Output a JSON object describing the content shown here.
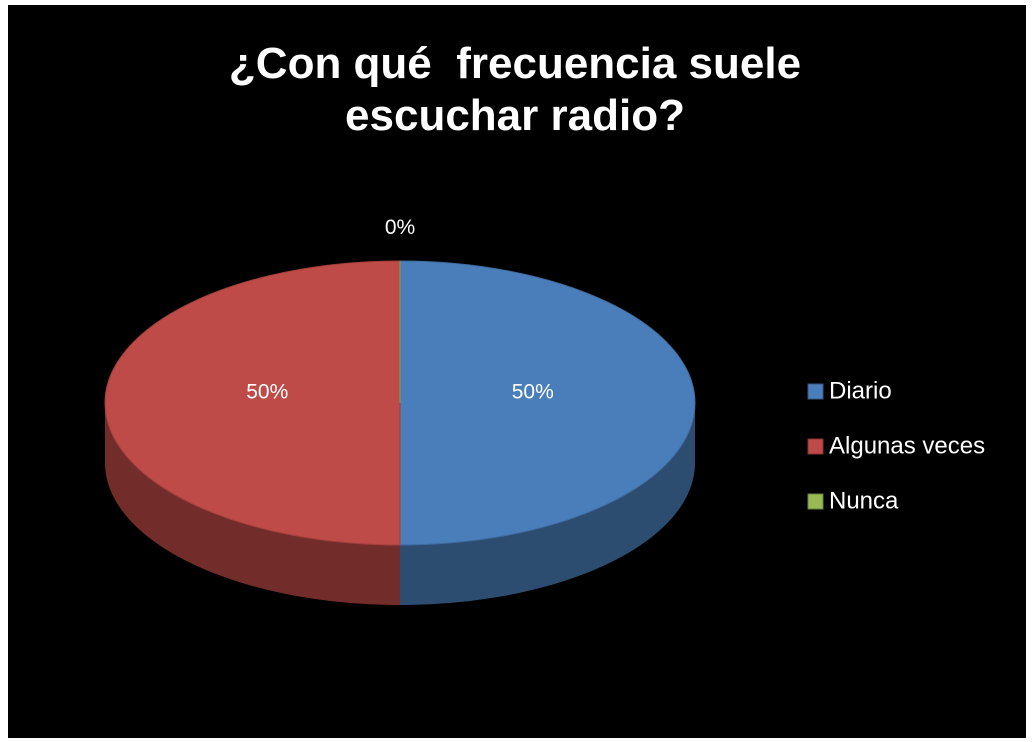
{
  "chart_data": {
    "type": "pie",
    "title": "¿Con qué  frecuencia suele escuchar radio?",
    "categories": [
      "Diario",
      "Algunas veces",
      "Nunca"
    ],
    "values": [
      50,
      50,
      0
    ],
    "value_labels": [
      "50%",
      "50%",
      "0%"
    ],
    "colors": [
      "#4a7ebb",
      "#be4b48",
      "#98b954"
    ],
    "legend": "right"
  }
}
